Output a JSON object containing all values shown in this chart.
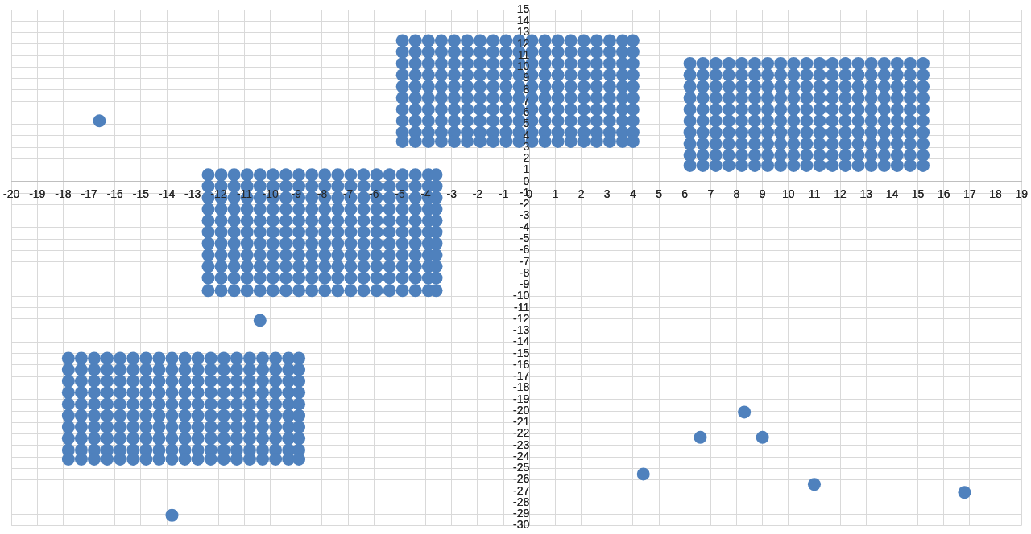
{
  "chart_data": {
    "type": "scatter",
    "marker": "circle",
    "grid": true,
    "xlim": [
      -20,
      19
    ],
    "ylim": [
      -30,
      15
    ],
    "xticks": [
      -20,
      -19,
      -18,
      -17,
      -16,
      -15,
      -14,
      -13,
      -12,
      -11,
      -10,
      -9,
      -8,
      -7,
      -6,
      -5,
      -4,
      -3,
      -2,
      -1,
      0,
      1,
      2,
      3,
      4,
      5,
      6,
      7,
      8,
      9,
      10,
      11,
      12,
      13,
      14,
      15,
      16,
      17,
      18,
      19
    ],
    "yticks": [
      -30,
      -29,
      -28,
      -27,
      -26,
      -25,
      -24,
      -23,
      -22,
      -21,
      -20,
      -19,
      -18,
      -17,
      -16,
      -15,
      -14,
      -13,
      -12,
      -11,
      -10,
      -9,
      -8,
      -7,
      -6,
      -5,
      -4,
      -3,
      -2,
      -1,
      0,
      1,
      2,
      3,
      4,
      5,
      6,
      7,
      8,
      9,
      10,
      11,
      12,
      13,
      14,
      15
    ],
    "series": [
      {
        "color": "#4f81bd",
        "x": [
          -12.4,
          -11.9,
          -11.4,
          -10.9,
          -10.4,
          -9.9,
          -9.4,
          -8.9,
          -8.4,
          -7.9,
          -7.4,
          -6.9,
          -6.4,
          -5.9,
          -5.4,
          -4.9,
          -4.4,
          -3.9,
          -3.6,
          -12.4,
          -11.9,
          -11.4,
          -10.9,
          -10.4,
          -9.9,
          -9.4,
          -8.9,
          -8.4,
          -7.9,
          -7.4,
          -6.9,
          -6.4,
          -5.9,
          -5.4,
          -4.9,
          -4.4,
          -3.9,
          -3.6,
          -12.4,
          -11.9,
          -11.4,
          -10.9,
          -10.4,
          -9.9,
          -9.4,
          -8.9,
          -8.4,
          -7.9,
          -7.4,
          -6.9,
          -6.4,
          -5.9,
          -5.4,
          -4.9,
          -4.4,
          -3.9,
          -3.6,
          -12.4,
          -11.9,
          -11.4,
          -10.9,
          -10.4,
          -9.9,
          -9.4,
          -8.9,
          -8.4,
          -7.9,
          -7.4,
          -6.9,
          -6.4,
          -5.9,
          -5.4,
          -4.9,
          -4.4,
          -3.9,
          -3.6,
          -12.4,
          -11.9,
          -11.4,
          -10.9,
          -10.4,
          -9.9,
          -9.4,
          -8.9,
          -8.4,
          -7.9,
          -7.4,
          -6.9,
          -6.4,
          -5.9,
          -5.4,
          -4.9,
          -4.4,
          -3.9,
          -3.6,
          -12.4,
          -11.9,
          -11.4,
          -10.9,
          -10.4,
          -9.9,
          -9.4,
          -8.9,
          -8.4,
          -7.9,
          -7.4,
          -6.9,
          -6.4,
          -5.9,
          -5.4,
          -4.9,
          -4.4,
          -3.9,
          -3.6,
          -12.4,
          -11.9,
          -11.4,
          -10.9,
          -10.4,
          -9.9,
          -9.4,
          -8.9,
          -8.4,
          -7.9,
          -7.4,
          -6.9,
          -6.4,
          -5.9,
          -5.4,
          -4.9,
          -4.4,
          -3.9,
          -3.6,
          -12.4,
          -11.9,
          -11.4,
          -10.9,
          -10.4,
          -9.9,
          -9.4,
          -8.9,
          -8.4,
          -7.9,
          -7.4,
          -6.9,
          -6.4,
          -5.9,
          -5.4,
          -4.9,
          -4.4,
          -3.9,
          -3.6,
          -12.4,
          -11.9,
          -11.4,
          -10.9,
          -10.4,
          -9.9,
          -9.4,
          -8.9,
          -8.4,
          -7.9,
          -7.4,
          -6.9,
          -6.4,
          -5.9,
          -5.4,
          -4.9,
          -4.4,
          -3.9,
          -3.6,
          -12.4,
          -11.9,
          -11.4,
          -10.9,
          -10.4,
          -9.9,
          -9.4,
          -8.9,
          -8.4,
          -7.9,
          -7.4,
          -6.9,
          -6.4,
          -5.9,
          -5.4,
          -4.9,
          -4.4,
          -3.9,
          -3.6,
          -12.4,
          -11.9,
          -11.4,
          -10.9,
          -10.4,
          -9.9,
          -9.4,
          -8.9,
          -8.4,
          -7.9,
          -7.4,
          -6.9,
          -6.4,
          -5.9,
          -5.4,
          -4.9,
          -4.4,
          -3.9,
          -3.6
        ],
        "values": [
          0.6,
          0.6,
          0.6,
          0.6,
          0.6,
          0.6,
          0.6,
          0.6,
          0.6,
          0.6,
          0.6,
          0.6,
          0.6,
          0.6,
          0.6,
          0.6,
          0.6,
          0.6,
          0.6,
          -0.4,
          -0.4,
          -0.4,
          -0.4,
          -0.4,
          -0.4,
          -0.4,
          -0.4,
          -0.4,
          -0.4,
          -0.4,
          -0.4,
          -0.4,
          -0.4,
          -0.4,
          -0.4,
          -0.4,
          -0.4,
          -0.4,
          -1.4,
          -1.4,
          -1.4,
          -1.4,
          -1.4,
          -1.4,
          -1.4,
          -1.4,
          -1.4,
          -1.4,
          -1.4,
          -1.4,
          -1.4,
          -1.4,
          -1.4,
          -1.4,
          -1.4,
          -1.4,
          -1.4,
          -2.4,
          -2.4,
          -2.4,
          -2.4,
          -2.4,
          -2.4,
          -2.4,
          -2.4,
          -2.4,
          -2.4,
          -2.4,
          -2.4,
          -2.4,
          -2.4,
          -2.4,
          -2.4,
          -2.4,
          -2.4,
          -2.4,
          -3.4,
          -3.4,
          -3.4,
          -3.4,
          -3.4,
          -3.4,
          -3.4,
          -3.4,
          -3.4,
          -3.4,
          -3.4,
          -3.4,
          -3.4,
          -3.4,
          -3.4,
          -3.4,
          -3.4,
          -3.4,
          -3.4,
          -4.4,
          -4.4,
          -4.4,
          -4.4,
          -4.4,
          -4.4,
          -4.4,
          -4.4,
          -4.4,
          -4.4,
          -4.4,
          -4.4,
          -4.4,
          -4.4,
          -4.4,
          -4.4,
          -4.4,
          -4.4,
          -4.4,
          -5.4,
          -5.4,
          -5.4,
          -5.4,
          -5.4,
          -5.4,
          -5.4,
          -5.4,
          -5.4,
          -5.4,
          -5.4,
          -5.4,
          -5.4,
          -5.4,
          -5.4,
          -5.4,
          -5.4,
          -5.4,
          -5.4,
          -6.4,
          -6.4,
          -6.4,
          -6.4,
          -6.4,
          -6.4,
          -6.4,
          -6.4,
          -6.4,
          -6.4,
          -6.4,
          -6.4,
          -6.4,
          -6.4,
          -6.4,
          -6.4,
          -6.4,
          -6.4,
          -6.4,
          -7.4,
          -7.4,
          -7.4,
          -7.4,
          -7.4,
          -7.4,
          -7.4,
          -7.4,
          -7.4,
          -7.4,
          -7.4,
          -7.4,
          -7.4,
          -7.4,
          -7.4,
          -7.4,
          -7.4,
          -7.4,
          -7.4,
          -8.4,
          -8.4,
          -8.4,
          -8.4,
          -8.4,
          -8.4,
          -8.4,
          -8.4,
          -8.4,
          -8.4,
          -8.4,
          -8.4,
          -8.4,
          -8.4,
          -8.4,
          -8.4,
          -8.4,
          -8.4,
          -8.4,
          -9.5,
          -9.5,
          -9.5,
          -9.5,
          -9.5,
          -9.5,
          -9.5,
          -9.5,
          -9.5,
          -9.5,
          -9.5,
          -9.5,
          -9.5,
          -9.5,
          -9.5,
          -9.5,
          -9.5,
          -9.5,
          -9.5
        ]
      },
      {
        "color": "#4f81bd",
        "x": [
          -17.8,
          -17.3,
          -16.8,
          -16.3,
          -15.8,
          -15.3,
          -14.8,
          -14.3,
          -13.8,
          -13.3,
          -12.8,
          -12.3,
          -11.8,
          -11.3,
          -10.8,
          -10.3,
          -9.8,
          -9.3,
          -8.9,
          -17.8,
          -17.3,
          -16.8,
          -16.3,
          -15.8,
          -15.3,
          -14.8,
          -14.3,
          -13.8,
          -13.3,
          -12.8,
          -12.3,
          -11.8,
          -11.3,
          -10.8,
          -10.3,
          -9.8,
          -9.3,
          -8.9,
          -17.8,
          -17.3,
          -16.8,
          -16.3,
          -15.8,
          -15.3,
          -14.8,
          -14.3,
          -13.8,
          -13.3,
          -12.8,
          -12.3,
          -11.8,
          -11.3,
          -10.8,
          -10.3,
          -9.8,
          -9.3,
          -8.9,
          -17.8,
          -17.3,
          -16.8,
          -16.3,
          -15.8,
          -15.3,
          -14.8,
          -14.3,
          -13.8,
          -13.3,
          -12.8,
          -12.3,
          -11.8,
          -11.3,
          -10.8,
          -10.3,
          -9.8,
          -9.3,
          -8.9,
          -17.8,
          -17.3,
          -16.8,
          -16.3,
          -15.8,
          -15.3,
          -14.8,
          -14.3,
          -13.8,
          -13.3,
          -12.8,
          -12.3,
          -11.8,
          -11.3,
          -10.8,
          -10.3,
          -9.8,
          -9.3,
          -8.9,
          -17.8,
          -17.3,
          -16.8,
          -16.3,
          -15.8,
          -15.3,
          -14.8,
          -14.3,
          -13.8,
          -13.3,
          -12.8,
          -12.3,
          -11.8,
          -11.3,
          -10.8,
          -10.3,
          -9.8,
          -9.3,
          -8.9,
          -17.8,
          -17.3,
          -16.8,
          -16.3,
          -15.8,
          -15.3,
          -14.8,
          -14.3,
          -13.8,
          -13.3,
          -12.8,
          -12.3,
          -11.8,
          -11.3,
          -10.8,
          -10.3,
          -9.8,
          -9.3,
          -8.9,
          -17.8,
          -17.3,
          -16.8,
          -16.3,
          -15.8,
          -15.3,
          -14.8,
          -14.3,
          -13.8,
          -13.3,
          -12.8,
          -12.3,
          -11.8,
          -11.3,
          -10.8,
          -10.3,
          -9.8,
          -9.3,
          -8.9,
          -17.8,
          -17.3,
          -16.8,
          -16.3,
          -15.8,
          -15.3,
          -14.8,
          -14.3,
          -13.8,
          -13.3,
          -12.8,
          -12.3,
          -11.8,
          -11.3,
          -10.8,
          -10.3,
          -9.8,
          -9.3,
          -8.9,
          -17.8,
          -17.3,
          -16.8,
          -16.3,
          -15.8,
          -15.3,
          -14.8,
          -14.3,
          -13.8,
          -13.3,
          -12.8,
          -12.3,
          -11.8,
          -11.3,
          -10.8,
          -10.3,
          -9.8,
          -9.3,
          -8.9
        ],
        "values": [
          -15.4,
          -15.4,
          -15.4,
          -15.4,
          -15.4,
          -15.4,
          -15.4,
          -15.4,
          -15.4,
          -15.4,
          -15.4,
          -15.4,
          -15.4,
          -15.4,
          -15.4,
          -15.4,
          -15.4,
          -15.4,
          -15.4,
          -16.4,
          -16.4,
          -16.4,
          -16.4,
          -16.4,
          -16.4,
          -16.4,
          -16.4,
          -16.4,
          -16.4,
          -16.4,
          -16.4,
          -16.4,
          -16.4,
          -16.4,
          -16.4,
          -16.4,
          -16.4,
          -16.4,
          -17.4,
          -17.4,
          -17.4,
          -17.4,
          -17.4,
          -17.4,
          -17.4,
          -17.4,
          -17.4,
          -17.4,
          -17.4,
          -17.4,
          -17.4,
          -17.4,
          -17.4,
          -17.4,
          -17.4,
          -17.4,
          -17.4,
          -18.4,
          -18.4,
          -18.4,
          -18.4,
          -18.4,
          -18.4,
          -18.4,
          -18.4,
          -18.4,
          -18.4,
          -18.4,
          -18.4,
          -18.4,
          -18.4,
          -18.4,
          -18.4,
          -18.4,
          -18.4,
          -18.4,
          -19.4,
          -19.4,
          -19.4,
          -19.4,
          -19.4,
          -19.4,
          -19.4,
          -19.4,
          -19.4,
          -19.4,
          -19.4,
          -19.4,
          -19.4,
          -19.4,
          -19.4,
          -19.4,
          -19.4,
          -19.4,
          -19.4,
          -20.4,
          -20.4,
          -20.4,
          -20.4,
          -20.4,
          -20.4,
          -20.4,
          -20.4,
          -20.4,
          -20.4,
          -20.4,
          -20.4,
          -20.4,
          -20.4,
          -20.4,
          -20.4,
          -20.4,
          -20.4,
          -20.4,
          -21.4,
          -21.4,
          -21.4,
          -21.4,
          -21.4,
          -21.4,
          -21.4,
          -21.4,
          -21.4,
          -21.4,
          -21.4,
          -21.4,
          -21.4,
          -21.4,
          -21.4,
          -21.4,
          -21.4,
          -21.4,
          -21.4,
          -22.4,
          -22.4,
          -22.4,
          -22.4,
          -22.4,
          -22.4,
          -22.4,
          -22.4,
          -22.4,
          -22.4,
          -22.4,
          -22.4,
          -22.4,
          -22.4,
          -22.4,
          -22.4,
          -22.4,
          -22.4,
          -22.4,
          -23.4,
          -23.4,
          -23.4,
          -23.4,
          -23.4,
          -23.4,
          -23.4,
          -23.4,
          -23.4,
          -23.4,
          -23.4,
          -23.4,
          -23.4,
          -23.4,
          -23.4,
          -23.4,
          -23.4,
          -23.4,
          -23.4,
          -24.2,
          -24.2,
          -24.2,
          -24.2,
          -24.2,
          -24.2,
          -24.2,
          -24.2,
          -24.2,
          -24.2,
          -24.2,
          -24.2,
          -24.2,
          -24.2,
          -24.2,
          -24.2,
          -24.2,
          -24.2,
          -24.2
        ]
      },
      {
        "color": "#4f81bd",
        "x": [
          -4.9,
          -4.4,
          -3.9,
          -3.4,
          -2.9,
          -2.4,
          -1.9,
          -1.4,
          -0.9,
          -0.4,
          0.1,
          0.6,
          1.1,
          1.6,
          2.1,
          2.6,
          3.1,
          3.6,
          4.0,
          -4.9,
          -4.4,
          -3.9,
          -3.4,
          -2.9,
          -2.4,
          -1.9,
          -1.4,
          -0.9,
          -0.4,
          0.1,
          0.6,
          1.1,
          1.6,
          2.1,
          2.6,
          3.1,
          3.6,
          4.0,
          -4.9,
          -4.4,
          -3.9,
          -3.4,
          -2.9,
          -2.4,
          -1.9,
          -1.4,
          -0.9,
          -0.4,
          0.1,
          0.6,
          1.1,
          1.6,
          2.1,
          2.6,
          3.1,
          3.6,
          4.0,
          -4.9,
          -4.4,
          -3.9,
          -3.4,
          -2.9,
          -2.4,
          -1.9,
          -1.4,
          -0.9,
          -0.4,
          0.1,
          0.6,
          1.1,
          1.6,
          2.1,
          2.6,
          3.1,
          3.6,
          4.0,
          -4.9,
          -4.4,
          -3.9,
          -3.4,
          -2.9,
          -2.4,
          -1.9,
          -1.4,
          -0.9,
          -0.4,
          0.1,
          0.6,
          1.1,
          1.6,
          2.1,
          2.6,
          3.1,
          3.6,
          4.0,
          -4.9,
          -4.4,
          -3.9,
          -3.4,
          -2.9,
          -2.4,
          -1.9,
          -1.4,
          -0.9,
          -0.4,
          0.1,
          0.6,
          1.1,
          1.6,
          2.1,
          2.6,
          3.1,
          3.6,
          4.0,
          -4.9,
          -4.4,
          -3.9,
          -3.4,
          -2.9,
          -2.4,
          -1.9,
          -1.4,
          -0.9,
          -0.4,
          0.1,
          0.6,
          1.1,
          1.6,
          2.1,
          2.6,
          3.1,
          3.6,
          4.0,
          -4.9,
          -4.4,
          -3.9,
          -3.4,
          -2.9,
          -2.4,
          -1.9,
          -1.4,
          -0.9,
          -0.4,
          0.1,
          0.6,
          1.1,
          1.6,
          2.1,
          2.6,
          3.1,
          3.6,
          4.0,
          -4.9,
          -4.4,
          -3.9,
          -3.4,
          -2.9,
          -2.4,
          -1.9,
          -1.4,
          -0.9,
          -0.4,
          0.1,
          0.6,
          1.1,
          1.6,
          2.1,
          2.6,
          3.1,
          3.6,
          4.0,
          -4.9,
          -4.4,
          -3.9,
          -3.4,
          -2.9,
          -2.4,
          -1.9,
          -1.4,
          -0.9,
          -0.4,
          0.1,
          0.6,
          1.1,
          1.6,
          2.1,
          2.6,
          3.1,
          3.6,
          4.0
        ],
        "values": [
          12.3,
          12.3,
          12.3,
          12.3,
          12.3,
          12.3,
          12.3,
          12.3,
          12.3,
          12.3,
          12.3,
          12.3,
          12.3,
          12.3,
          12.3,
          12.3,
          12.3,
          12.3,
          12.3,
          11.3,
          11.3,
          11.3,
          11.3,
          11.3,
          11.3,
          11.3,
          11.3,
          11.3,
          11.3,
          11.3,
          11.3,
          11.3,
          11.3,
          11.3,
          11.3,
          11.3,
          11.3,
          11.3,
          10.3,
          10.3,
          10.3,
          10.3,
          10.3,
          10.3,
          10.3,
          10.3,
          10.3,
          10.3,
          10.3,
          10.3,
          10.3,
          10.3,
          10.3,
          10.3,
          10.3,
          10.3,
          10.3,
          9.3,
          9.3,
          9.3,
          9.3,
          9.3,
          9.3,
          9.3,
          9.3,
          9.3,
          9.3,
          9.3,
          9.3,
          9.3,
          9.3,
          9.3,
          9.3,
          9.3,
          9.3,
          9.3,
          8.3,
          8.3,
          8.3,
          8.3,
          8.3,
          8.3,
          8.3,
          8.3,
          8.3,
          8.3,
          8.3,
          8.3,
          8.3,
          8.3,
          8.3,
          8.3,
          8.3,
          8.3,
          8.3,
          7.3,
          7.3,
          7.3,
          7.3,
          7.3,
          7.3,
          7.3,
          7.3,
          7.3,
          7.3,
          7.3,
          7.3,
          7.3,
          7.3,
          7.3,
          7.3,
          7.3,
          7.3,
          7.3,
          6.3,
          6.3,
          6.3,
          6.3,
          6.3,
          6.3,
          6.3,
          6.3,
          6.3,
          6.3,
          6.3,
          6.3,
          6.3,
          6.3,
          6.3,
          6.3,
          6.3,
          6.3,
          6.3,
          5.3,
          5.3,
          5.3,
          5.3,
          5.3,
          5.3,
          5.3,
          5.3,
          5.3,
          5.3,
          5.3,
          5.3,
          5.3,
          5.3,
          5.3,
          5.3,
          5.3,
          5.3,
          5.3,
          4.3,
          4.3,
          4.3,
          4.3,
          4.3,
          4.3,
          4.3,
          4.3,
          4.3,
          4.3,
          4.3,
          4.3,
          4.3,
          4.3,
          4.3,
          4.3,
          4.3,
          4.3,
          4.3,
          3.5,
          3.5,
          3.5,
          3.5,
          3.5,
          3.5,
          3.5,
          3.5,
          3.5,
          3.5,
          3.5,
          3.5,
          3.5,
          3.5,
          3.5,
          3.5,
          3.5,
          3.5,
          3.5
        ]
      },
      {
        "color": "#4f81bd",
        "x": [
          6.2,
          6.7,
          7.2,
          7.7,
          8.2,
          8.7,
          9.2,
          9.7,
          10.2,
          10.7,
          11.2,
          11.7,
          12.2,
          12.7,
          13.2,
          13.7,
          14.2,
          14.7,
          15.2,
          6.2,
          6.7,
          7.2,
          7.7,
          8.2,
          8.7,
          9.2,
          9.7,
          10.2,
          10.7,
          11.2,
          11.7,
          12.2,
          12.7,
          13.2,
          13.7,
          14.2,
          14.7,
          15.2,
          6.2,
          6.7,
          7.2,
          7.7,
          8.2,
          8.7,
          9.2,
          9.7,
          10.2,
          10.7,
          11.2,
          11.7,
          12.2,
          12.7,
          13.2,
          13.7,
          14.2,
          14.7,
          15.2,
          6.2,
          6.7,
          7.2,
          7.7,
          8.2,
          8.7,
          9.2,
          9.7,
          10.2,
          10.7,
          11.2,
          11.7,
          12.2,
          12.7,
          13.2,
          13.7,
          14.2,
          14.7,
          15.2,
          6.2,
          6.7,
          7.2,
          7.7,
          8.2,
          8.7,
          9.2,
          9.7,
          10.2,
          10.7,
          11.2,
          11.7,
          12.2,
          12.7,
          13.2,
          13.7,
          14.2,
          14.7,
          15.2,
          6.2,
          6.7,
          7.2,
          7.7,
          8.2,
          8.7,
          9.2,
          9.7,
          10.2,
          10.7,
          11.2,
          11.7,
          12.2,
          12.7,
          13.2,
          13.7,
          14.2,
          14.7,
          15.2,
          6.2,
          6.7,
          7.2,
          7.7,
          8.2,
          8.7,
          9.2,
          9.7,
          10.2,
          10.7,
          11.2,
          11.7,
          12.2,
          12.7,
          13.2,
          13.7,
          14.2,
          14.7,
          15.2,
          6.2,
          6.7,
          7.2,
          7.7,
          8.2,
          8.7,
          9.2,
          9.7,
          10.2,
          10.7,
          11.2,
          11.7,
          12.2,
          12.7,
          13.2,
          13.7,
          14.2,
          14.7,
          15.2,
          6.2,
          6.7,
          7.2,
          7.7,
          8.2,
          8.7,
          9.2,
          9.7,
          10.2,
          10.7,
          11.2,
          11.7,
          12.2,
          12.7,
          13.2,
          13.7,
          14.2,
          14.7,
          15.2,
          6.2,
          6.7,
          7.2,
          7.7,
          8.2,
          8.7,
          9.2,
          9.7,
          10.2,
          10.7,
          11.2,
          11.7,
          12.2,
          12.7,
          13.2,
          13.7,
          14.2,
          14.7,
          15.2
        ],
        "values": [
          10.3,
          10.3,
          10.3,
          10.3,
          10.3,
          10.3,
          10.3,
          10.3,
          10.3,
          10.3,
          10.3,
          10.3,
          10.3,
          10.3,
          10.3,
          10.3,
          10.3,
          10.3,
          10.3,
          9.3,
          9.3,
          9.3,
          9.3,
          9.3,
          9.3,
          9.3,
          9.3,
          9.3,
          9.3,
          9.3,
          9.3,
          9.3,
          9.3,
          9.3,
          9.3,
          9.3,
          9.3,
          9.3,
          8.3,
          8.3,
          8.3,
          8.3,
          8.3,
          8.3,
          8.3,
          8.3,
          8.3,
          8.3,
          8.3,
          8.3,
          8.3,
          8.3,
          8.3,
          8.3,
          8.3,
          8.3,
          8.3,
          7.3,
          7.3,
          7.3,
          7.3,
          7.3,
          7.3,
          7.3,
          7.3,
          7.3,
          7.3,
          7.3,
          7.3,
          7.3,
          7.3,
          7.3,
          7.3,
          7.3,
          7.3,
          7.3,
          6.3,
          6.3,
          6.3,
          6.3,
          6.3,
          6.3,
          6.3,
          6.3,
          6.3,
          6.3,
          6.3,
          6.3,
          6.3,
          6.3,
          6.3,
          6.3,
          6.3,
          6.3,
          6.3,
          5.3,
          5.3,
          5.3,
          5.3,
          5.3,
          5.3,
          5.3,
          5.3,
          5.3,
          5.3,
          5.3,
          5.3,
          5.3,
          5.3,
          5.3,
          5.3,
          5.3,
          5.3,
          5.3,
          4.3,
          4.3,
          4.3,
          4.3,
          4.3,
          4.3,
          4.3,
          4.3,
          4.3,
          4.3,
          4.3,
          4.3,
          4.3,
          4.3,
          4.3,
          4.3,
          4.3,
          4.3,
          4.3,
          3.3,
          3.3,
          3.3,
          3.3,
          3.3,
          3.3,
          3.3,
          3.3,
          3.3,
          3.3,
          3.3,
          3.3,
          3.3,
          3.3,
          3.3,
          3.3,
          3.3,
          3.3,
          3.3,
          2.3,
          2.3,
          2.3,
          2.3,
          2.3,
          2.3,
          2.3,
          2.3,
          2.3,
          2.3,
          2.3,
          2.3,
          2.3,
          2.3,
          2.3,
          2.3,
          2.3,
          2.3,
          2.3,
          1.4,
          1.4,
          1.4,
          1.4,
          1.4,
          1.4,
          1.4,
          1.4,
          1.4,
          1.4,
          1.4,
          1.4,
          1.4,
          1.4,
          1.4,
          1.4,
          1.4,
          1.4,
          1.4
        ]
      },
      {
        "color": "#4f81bd",
        "x": [
          -16.6,
          -10.4,
          -13.8,
          4.4,
          6.6,
          8.3,
          9.0,
          11.0,
          16.8
        ],
        "values": [
          5.3,
          -12.1,
          -29.1,
          -25.5,
          -22.3,
          -20.1,
          -22.3,
          -26.4,
          -27.1
        ]
      }
    ]
  }
}
